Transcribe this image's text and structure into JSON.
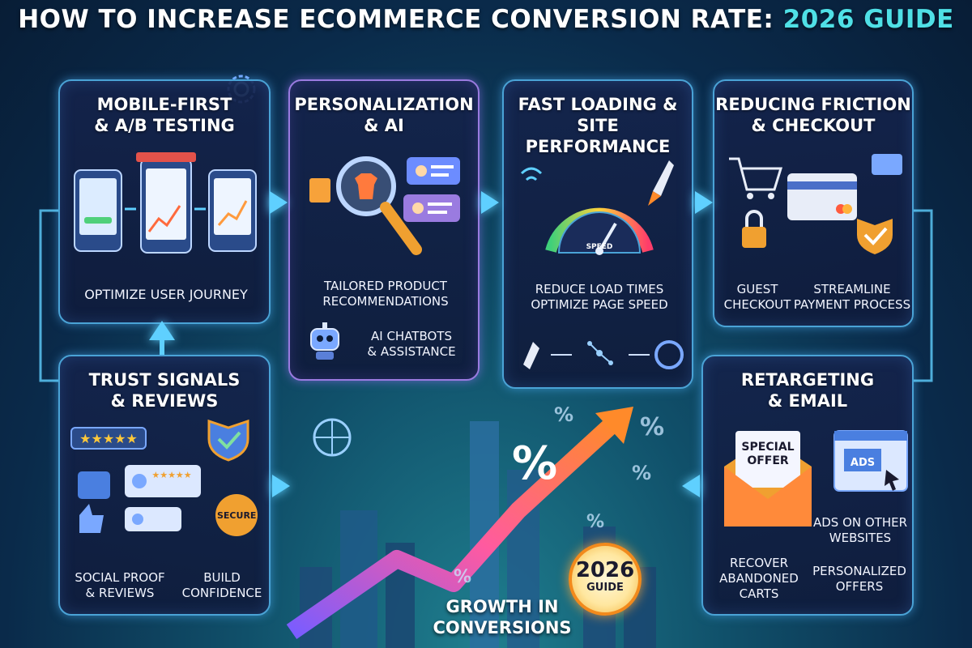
{
  "title": {
    "main": "How to Increase Ecommerce Conversion Rate:",
    "accent": "2026 Guide",
    "accent_color": "#4fe0e6"
  },
  "cards": {
    "mobile": {
      "title": "Mobile-First\n& A/B Testing",
      "caption": "Optimize User Journey"
    },
    "personalization": {
      "title": "Personalization\n& AI",
      "caption1": "Tailored Product\nRecommendations",
      "caption2": "AI Chatbots\n& Assistance"
    },
    "performance": {
      "title": "Fast Loading &\nSite Performance",
      "gauge_label": "SPEED",
      "caption": "Reduce Load Times\nOptimize Page Speed"
    },
    "checkout": {
      "title": "Reducing Friction\n& Checkout",
      "caption1": "Guest\nCheckout",
      "caption2": "Streamline\nPayment Process"
    },
    "trust": {
      "title": "Trust Signals\n& Reviews",
      "secure_label": "SECURE",
      "caption1": "Social Proof\n& Reviews",
      "caption2": "Build\nConfidence"
    },
    "retargeting": {
      "title": "Retargeting\n& Email",
      "offer_label": "Special\nOffer",
      "ads_label": "ADS",
      "caption_ads": "Ads on Other\nWebsites",
      "caption1": "Recover\nAbandoned\nCarts",
      "caption2": "Personalized\nOffers"
    }
  },
  "center": {
    "badge_year": "2026",
    "badge_label": "GUIDE",
    "growth": "Growth in\nConversions",
    "percent_symbol": "%"
  },
  "colors": {
    "card_border_blue": "#4aa3d6",
    "card_border_purple": "#9a7be0",
    "arrow": "#5fd0ff",
    "growth_arrow_start": "#7a5cff",
    "growth_arrow_end": "#ff8a2a"
  }
}
